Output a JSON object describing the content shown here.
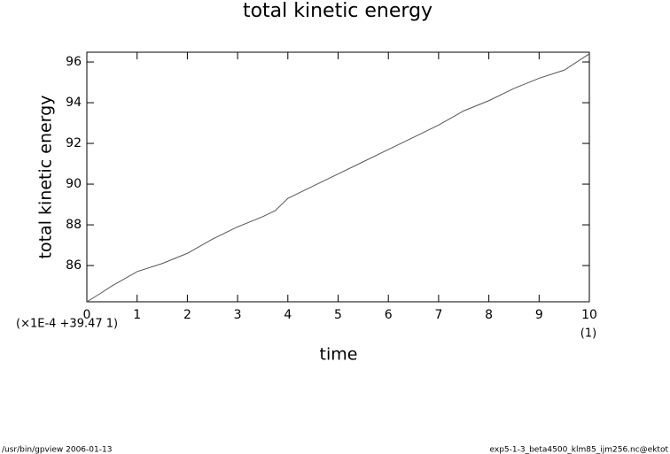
{
  "chart_data": {
    "type": "line",
    "title": "total kinetic energy",
    "x_label": "time",
    "y_label": "total kinetic energy",
    "y_scale_note": "(×1E-4 +39.47 1)",
    "x_unit": "(1)",
    "footer_left": "/usr/bin/gpview  2006-01-13",
    "footer_right": "exp5-1-3_beta4500_klm85_ijm256.nc@ektot",
    "x": [
      0,
      0.25,
      0.5,
      1,
      1.5,
      2,
      2.5,
      3,
      3.5,
      3.75,
      4,
      4.5,
      5,
      5.5,
      6,
      6.5,
      7,
      7.5,
      8,
      8.5,
      9,
      9.5,
      10
    ],
    "values": [
      84.22,
      84.6,
      85.0,
      85.7,
      86.1,
      86.6,
      87.3,
      87.9,
      88.4,
      88.7,
      89.3,
      89.9,
      90.5,
      91.1,
      91.7,
      92.3,
      92.9,
      93.6,
      94.1,
      94.7,
      95.2,
      95.6,
      96.4
    ],
    "color": "#555555",
    "xlim": [
      0,
      10
    ],
    "xticks": [
      0,
      1,
      2,
      3,
      4,
      5,
      6,
      7,
      8,
      9,
      10
    ],
    "ylim": [
      84.22,
      96.48
    ],
    "yticks": [
      86,
      88,
      90,
      92,
      94,
      96
    ]
  }
}
